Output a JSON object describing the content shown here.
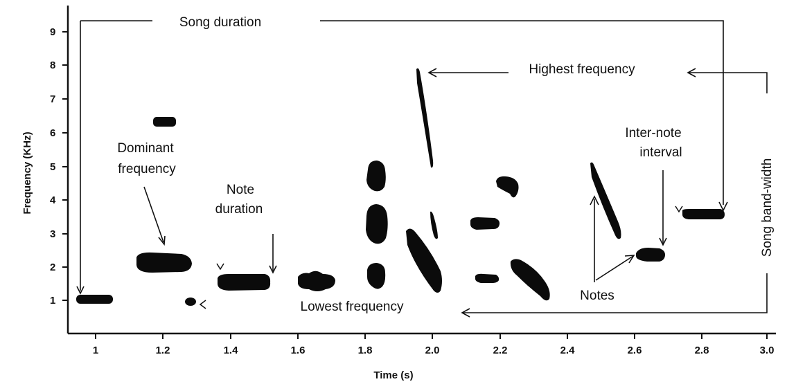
{
  "axes": {
    "x_label": "Time (s)",
    "y_label": "Frequency (KHz)",
    "x_ticks": [
      "1",
      "1.2",
      "1.4",
      "1.6",
      "1.8",
      "2.0",
      "2.2",
      "2.4",
      "2.6",
      "2.8",
      "3.0"
    ],
    "y_ticks": [
      "1",
      "2",
      "3",
      "4",
      "5",
      "6",
      "7",
      "8",
      "9"
    ]
  },
  "annotations": {
    "song_duration": "Song duration",
    "highest_frequency": "Highest frequency",
    "dominant_frequency_line1": "Dominant",
    "dominant_frequency_line2": "frequency",
    "note_duration_line1": "Note",
    "note_duration_line2": "duration",
    "lowest_frequency": "Lowest frequency",
    "inter_note_line1": "Inter-note",
    "inter_note_line2": "interval",
    "notes": "Notes",
    "song_bandwidth": "Song band-width"
  },
  "carets": {
    "small_left": "<",
    "small_down": "v"
  },
  "colors": {
    "ink": "#0b0b0b",
    "background": "#ffffff"
  }
}
